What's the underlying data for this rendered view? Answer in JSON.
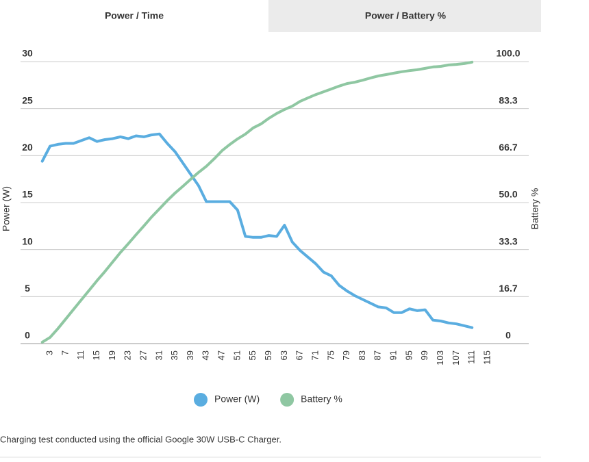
{
  "tabs": [
    "Power / Time",
    "Power / Battery %"
  ],
  "caption": "Charging test conducted using the official Google 30W USB-C Charger.",
  "chart_data": {
    "type": "line",
    "y_label": "Power (W)",
    "y2_label": "Battery %",
    "x": [
      1,
      3,
      5,
      7,
      9,
      11,
      13,
      15,
      17,
      19,
      21,
      23,
      25,
      27,
      29,
      31,
      33,
      35,
      37,
      39,
      41,
      43,
      45,
      47,
      49,
      51,
      53,
      55,
      57,
      59,
      61,
      63,
      65,
      67,
      69,
      71,
      73,
      75,
      77,
      79,
      81,
      83,
      85,
      87,
      89,
      91,
      93,
      95,
      97,
      99,
      101,
      103,
      105,
      107,
      109,
      111
    ],
    "xlim": [
      0,
      115
    ],
    "xticks": [
      3,
      7,
      11,
      15,
      19,
      23,
      27,
      31,
      35,
      39,
      43,
      47,
      51,
      55,
      59,
      63,
      67,
      71,
      75,
      79,
      83,
      87,
      91,
      95,
      99,
      103,
      107,
      111,
      115
    ],
    "ylim": [
      0,
      30
    ],
    "yticks": [
      0,
      5,
      10,
      15,
      20,
      25,
      30
    ],
    "y2lim": [
      0,
      100
    ],
    "y2ticks": [
      0,
      16.7,
      33.3,
      {
        "value": 50,
        "label": "50.0"
      },
      66.7,
      83.3,
      {
        "value": 100,
        "label": "100.0"
      }
    ],
    "grid": true,
    "legend": "bottom",
    "series": [
      {
        "name": "Power (W)",
        "color": "#5aade0",
        "values": [
          19.4,
          21.0,
          21.2,
          21.3,
          21.3,
          21.6,
          21.9,
          21.5,
          21.7,
          21.8,
          22.0,
          21.8,
          22.1,
          22.0,
          22.2,
          22.3,
          21.3,
          20.4,
          19.2,
          18.0,
          16.8,
          15.1,
          15.1,
          15.1,
          15.1,
          14.2,
          11.4,
          11.3,
          11.3,
          11.5,
          11.4,
          12.6,
          10.8,
          9.9,
          9.2,
          8.5,
          7.6,
          7.2,
          6.2,
          5.6,
          5.1,
          4.7,
          4.3,
          3.9,
          3.8,
          3.3,
          3.3,
          3.7,
          3.5,
          3.6,
          2.5,
          2.4,
          2.2,
          2.1,
          1.9,
          1.7
        ]
      },
      {
        "name": "Battery %",
        "color": "#8fc7a2",
        "axis": "y2",
        "values": [
          0.5,
          2.2,
          5.3,
          8.7,
          12.1,
          15.5,
          18.9,
          22.3,
          25.5,
          28.9,
          32.3,
          35.4,
          38.6,
          41.7,
          44.9,
          47.8,
          50.7,
          53.4,
          55.8,
          58.3,
          60.7,
          62.9,
          65.5,
          68.4,
          70.6,
          72.6,
          74.3,
          76.5,
          77.9,
          79.9,
          81.6,
          83.0,
          84.2,
          85.9,
          87.1,
          88.3,
          89.3,
          90.3,
          91.3,
          92.2,
          92.7,
          93.4,
          94.2,
          94.9,
          95.4,
          95.9,
          96.4,
          96.8,
          97.1,
          97.6,
          98.1,
          98.3,
          98.8,
          99.0,
          99.3,
          99.8
        ]
      }
    ]
  }
}
